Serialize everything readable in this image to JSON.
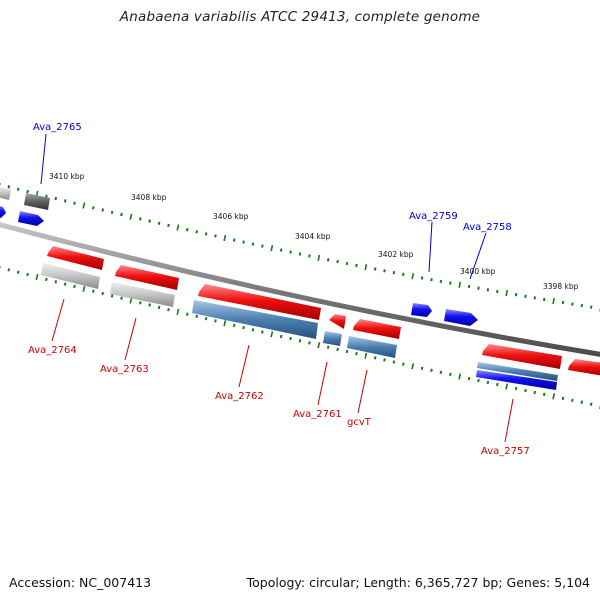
{
  "title": "Anabaena variabilis ATCC 29413, complete genome",
  "accession": "Accession: NC_007413",
  "topology": "Topology: circular; Length: 6,365,727 bp; Genes: 5,104",
  "ticks": [
    "3410 kbp",
    "3408 kbp",
    "3406 kbp",
    "3404 kbp",
    "3402 kbp",
    "3400 kbp",
    "3398 kbp"
  ],
  "genes_forward": [
    "Ava_2765",
    "Ava_2759",
    "Ava_2758"
  ],
  "genes_reverse": [
    "Ava_2764",
    "Ava_2763",
    "Ava_2762",
    "Ava_2761",
    "gcvT",
    "Ava_2757"
  ],
  "colors": {
    "backbone": "#8a8a8a",
    "tick_green": "#1a7a1a",
    "cds_red": "#e60000",
    "cds_blue": "#0000ee",
    "gene_gray": "#bdbdbd",
    "gene_steelblue": "#4a7fb0",
    "label_blue": "#0000cc",
    "label_red": "#cc0000"
  }
}
